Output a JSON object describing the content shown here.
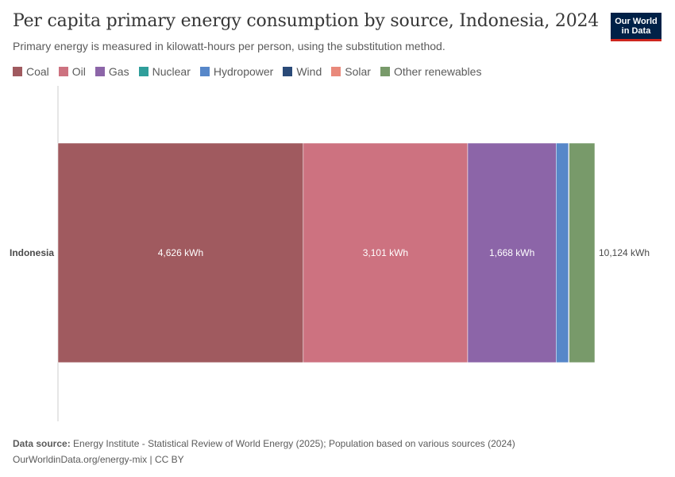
{
  "header": {
    "title": "Per capita primary energy consumption by source, Indonesia, 2024",
    "subtitle": "Primary energy is measured in kilowatt-hours per person, using the substitution method."
  },
  "logo": {
    "line1": "Our World",
    "line2": "in Data"
  },
  "footer": {
    "source_label": "Data source:",
    "source_text": "Energy Institute - Statistical Review of World Energy (2025); Population based on various sources (2024)",
    "link_text": "OurWorldinData.org/energy-mix | CC BY"
  },
  "chart_data": {
    "type": "bar",
    "orientation": "horizontal",
    "stacked": true,
    "title": "Per capita primary energy consumption by source, Indonesia, 2024",
    "subtitle": "Primary energy is measured in kilowatt-hours per person, using the substitution method.",
    "categories": [
      "Indonesia"
    ],
    "unit": "kWh",
    "series": [
      {
        "name": "Coal",
        "color": "#a05a5f",
        "values": [
          4626
        ],
        "label": "4,626 kWh"
      },
      {
        "name": "Oil",
        "color": "#cd7280",
        "values": [
          3101
        ],
        "label": "3,101 kWh"
      },
      {
        "name": "Gas",
        "color": "#8c65a8",
        "values": [
          1668
        ],
        "label": "1,668 kWh"
      },
      {
        "name": "Nuclear",
        "color": "#2f9e9a",
        "values": [
          0
        ],
        "label": ""
      },
      {
        "name": "Hydropower",
        "color": "#5787c9",
        "values": [
          235
        ],
        "label": ""
      },
      {
        "name": "Wind",
        "color": "#2a4a78",
        "values": [
          5
        ],
        "label": ""
      },
      {
        "name": "Solar",
        "color": "#e9897b",
        "values": [
          4
        ],
        "label": ""
      },
      {
        "name": "Other renewables",
        "color": "#789a6a",
        "values": [
          485
        ],
        "label": ""
      }
    ],
    "total_label": "10,124 kWh",
    "xlim": [
      0,
      10124
    ],
    "legend_position": "top",
    "grid": false
  }
}
